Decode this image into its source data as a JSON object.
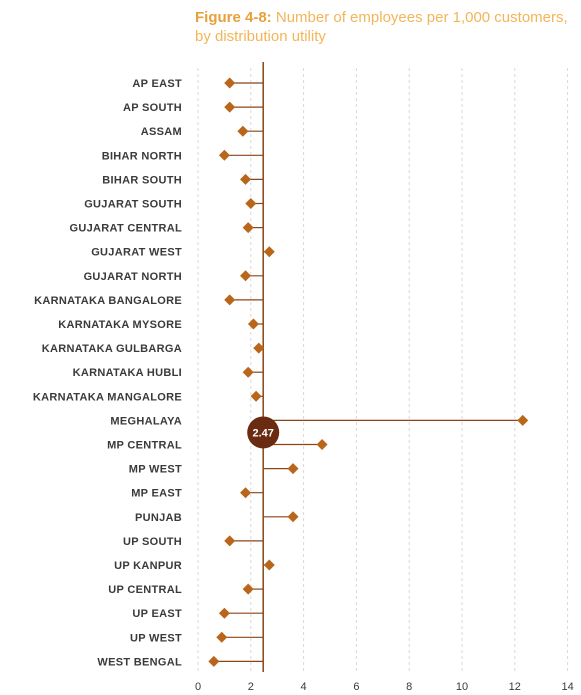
{
  "title": {
    "prefix": "Figure 4-8:",
    "text": "Number of employees per 1,000 customers, by distribution utility"
  },
  "colors": {
    "title_prefix": "#e8a13a",
    "title_text": "#f3b558",
    "marker": "#b9651a",
    "line": "#8b4513",
    "average_circle": "#6b2a12",
    "grid": "#d9d9d9",
    "label": "#3a3a3a"
  },
  "chart_data": {
    "type": "lollipop",
    "orientation": "horizontal",
    "categories": [
      "AP EAST",
      "AP SOUTH",
      "ASSAM",
      "BIHAR NORTH",
      "BIHAR SOUTH",
      "GUJARAT SOUTH",
      "GUJARAT CENTRAL",
      "GUJARAT WEST",
      "GUJARAT NORTH",
      "KARNATAKA BANGALORE",
      "KARNATAKA MYSORE",
      "KARNATAKA GULBARGA",
      "KARNATAKA HUBLI",
      "KARNATAKA MANGALORE",
      "MEGHALAYA",
      "MP CENTRAL",
      "MP WEST",
      "MP EAST",
      "PUNJAB",
      "UP SOUTH",
      "UP KANPUR",
      "UP CENTRAL",
      "UP EAST",
      "UP WEST",
      "WEST BENGAL"
    ],
    "values": [
      1.2,
      1.2,
      1.7,
      1.0,
      1.8,
      2.0,
      1.9,
      2.7,
      1.8,
      1.2,
      2.1,
      2.3,
      1.9,
      2.2,
      12.3,
      4.7,
      3.6,
      1.8,
      3.6,
      1.2,
      2.7,
      1.9,
      1.0,
      0.9,
      0.6
    ],
    "reference_line": {
      "value": 2.47,
      "label": "2.47"
    },
    "xlim": [
      0,
      14
    ],
    "xticks": [
      0,
      2,
      4,
      6,
      8,
      10,
      12,
      14
    ],
    "grid": "vertical dashed",
    "marker": "diamond"
  }
}
